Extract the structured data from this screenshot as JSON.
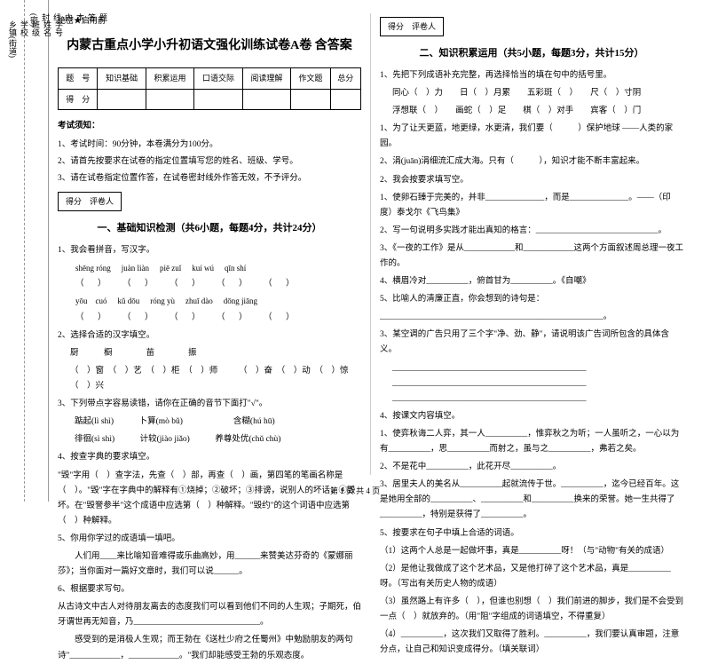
{
  "margin": {
    "outer": [
      "学号",
      "姓名",
      "班级",
      "学校",
      "乡镇(街道)"
    ],
    "inner": [
      "题",
      "答",
      "本",
      "内",
      "线",
      "封",
      "(密)"
    ]
  },
  "secret": "绝密★启用前",
  "title": "内蒙古重点小学小升初语文强化训练试卷A卷 含答案",
  "score_table": {
    "headers": [
      "题　号",
      "知识基础",
      "积累运用",
      "口语交际",
      "阅读理解",
      "作文题",
      "总分"
    ],
    "row_label": "得　分"
  },
  "notice_head": "考试须知：",
  "notices": [
    "1、考试时间：90分钟，本卷满分为100分。",
    "2、请首先按要求在试卷的指定位置填写您的姓名、班级、学号。",
    "3、请在试卷指定位置作答，在试卷密封线外作答无效，不予评分。"
  ],
  "scorer": "得分　评卷人",
  "sec1": {
    "title": "一、基础知识检测（共6小题，每题4分，共计24分）",
    "q1": "1、我会看拼音，写汉字。",
    "py1": [
      "shēng róng",
      "juàn liàn",
      "piē zuǐ",
      "kuí wú",
      "qīn shí"
    ],
    "py2": [
      "yōu　cuó",
      "kǔ dōu",
      "róng yù",
      "zhuī dào",
      "dōng jiāng"
    ],
    "q2": "2、选择合适的汉字填空。",
    "chars": "厨　　　橱　　　　苗　　　　振",
    "q2a": "（　）窗　（　）艺　（　）柜　（　）师　　　（　）奋　（　）动　（　）惊　（　）兴",
    "q3": "3、下列带点字容易读错，请你在正确的音节下面打\"√\"。",
    "q3a": "　　踮起(lì  shì)　　　卜算(mò  bǔ)　　　　　　含糊(hú  hū)",
    "q3b": "　　徘徊(sì  shì)　　　计较(jiào  jiǎo)　　　养尊处优(chǔ  chù)",
    "q4": "4、按查字典的要求填空。",
    "q4t": "\"毁\"字用（　）查字法，先查（　）部，再查（　）画，第四笔的笔画名称是（　）。\"毁\"字在字典中的解释有①烧掉；②破坏；③排谤，说别人的坏话；④毁坏。在\"毁誉参半\"这个成语中应选第（　）种解释。\"毁约\"的这个词语中应选第（　）种解释。",
    "q5": "5、你用你学过的成语填一填吧。",
    "q5t": "　　人们用____来比喻知音难得或乐曲高妙，用______来赞美达芬奇的《蒙娜丽莎》；当你面对一篇好文章时，我们可以说______。",
    "q6": "6、根据要求写句。",
    "q6t": "从古诗文中古人对待朋友离去的态度我们可以看到他们不同的人生观；子期死，伯牙谓世再无知音，乃______________________________。",
    "q6t2": "　　感受到的是消极人生观；而王勃在《送杜少府之任蜀州》中勉励朋友的两句诗\"____________，____________。\"我们却能感受王勃的乐观态度。"
  },
  "sec2": {
    "title": "二、知识积累运用（共5小题，每题3分，共计15分）",
    "q1": "1、先把下列成语补充完整，再选择恰当的填在句中的括号里。",
    "q1a": "同心（　）力　　日（　）月累　　五彩斑（　）　　尺（　）寸阴",
    "q1b": "浮想联（　）　　画蛇（　）足　　棋（　）对手　　宾客（　）门",
    "q1c": "1、为了让天更蓝，地更绿，水更清，我们要（　　　）保护地球 ——人类的家园。",
    "q1d": "2、涓(juān)涓细流汇成大海。只有（　　　），知识才能不断丰富起来。",
    "q2": "2、我会按要求填写空。",
    "q2a": "1、使卵石臻于完美的，并非______________，而是______________。——（印度）泰戈尔《飞鸟集》",
    "q2b": "2、写一句说明多实践才能出真知的格言：_____________________________。",
    "q2c": "3、《一夜的工作》是从____________和____________这两个方面叙述周总理一夜工作的。",
    "q2d": "4、横眉冷对__________，俯首甘为__________。《自嘲》",
    "q2e": "5、比喻人的清廉正直，你会想到的诗句是：",
    "q2line": "_____________________________________________________。",
    "q3": "3、某空调的广告只用了三个字\"净、劲、静\"，请说明该广告词所包含的具体含义。",
    "q4": "4、按课文内容填空。",
    "q4a": "1、使弈秋诲二人弈，其一人__________，惟弈秋之为听；一人虽听之，一心以为有__________，思__________而射之，虽与之__________，弗若之矣。",
    "q4b": "2、不是花中__________，此花开尽__________。",
    "q4c": "3、居里夫人的美名从__________起就流传于世。__________，迄今已经百年。这是她用全部的__________、__________和__________换来的荣誉。她一生共得了__________，特别是获得了__________。",
    "q5": "5、按要求在句子中填上合适的词语。",
    "q5a": "（1）这两个人总是一起做坏事，真是__________呀！（与\"动物\"有关的成语）",
    "q5b": "（2）是他让我做成了这个艺术品，又是他打碎了这个艺术品，真是__________呀。（写出有关历史人物的成语）",
    "q5c": "（3）虽然路上有许多（　），但谁也别想（　）我们前进的脚步，我们是不会受到一点（　）就放弃的。（用\"阻\"字组成的词语填空，不得重复）",
    "q5d": "（4）__________，这次我们又取得了胜利。__________，我们要认真审题，注意分点，让自己和知识变成得分。（填关联词）"
  },
  "footer": "第 1 页 共 4 页"
}
